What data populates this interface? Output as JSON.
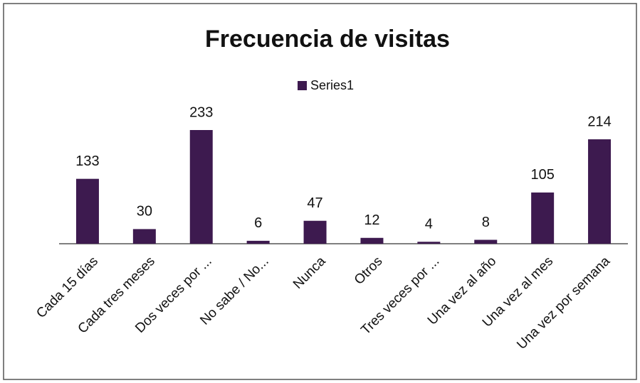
{
  "chart_data": {
    "type": "bar",
    "title": "Frecuencia de visitas",
    "categories": [
      "Cada 15 días",
      "Cada tres meses",
      "Dos veces por ...",
      "No sabe / No...",
      "Nunca",
      "Otros",
      "Tres veces por ...",
      "Una vez al año",
      "Una vez al mes",
      "Una vez por semana"
    ],
    "series": [
      {
        "name": "Series1",
        "color": "#3d1a4f",
        "values": [
          133,
          30,
          233,
          6,
          47,
          12,
          4,
          8,
          105,
          214
        ]
      }
    ],
    "legend": "top"
  }
}
